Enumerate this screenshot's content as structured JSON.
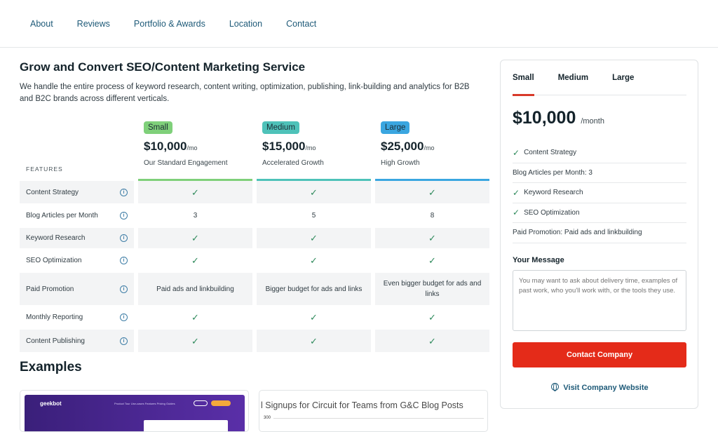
{
  "nav": [
    "About",
    "Reviews",
    "Portfolio & Awards",
    "Location",
    "Contact"
  ],
  "service": {
    "title": "Grow and Convert SEO/Content Marketing Service",
    "description": "We handle the entire process of keyword research, content writing, optimization, publishing, link-building and analytics for B2B and B2C brands across different verticals."
  },
  "features_label": "FEATURES",
  "plans": [
    {
      "name": "Small",
      "price": "$10,000",
      "unit": "/mo",
      "subtitle": "Our Standard Engagement",
      "badge_color": "#7fd07a",
      "bar_color": "#7fd07a"
    },
    {
      "name": "Medium",
      "price": "$15,000",
      "unit": "/mo",
      "subtitle": "Accelerated Growth",
      "badge_color": "#4ec2b9",
      "bar_color": "#4ec2b9"
    },
    {
      "name": "Large",
      "price": "$25,000",
      "unit": "/mo",
      "subtitle": "High Growth",
      "badge_color": "#3aa6e0",
      "bar_color": "#3aa6e0"
    }
  ],
  "features": [
    {
      "name": "Content Strategy",
      "values": [
        "✓",
        "✓",
        "✓"
      ]
    },
    {
      "name": "Blog Articles per Month",
      "values": [
        "3",
        "5",
        "8"
      ]
    },
    {
      "name": "Keyword Research",
      "values": [
        "✓",
        "✓",
        "✓"
      ]
    },
    {
      "name": "SEO Optimization",
      "values": [
        "✓",
        "✓",
        "✓"
      ]
    },
    {
      "name": "Paid Promotion",
      "values": [
        "Paid ads and linkbuilding",
        "Bigger budget for ads and links",
        "Even bigger budget for ads and links"
      ]
    },
    {
      "name": "Monthly Reporting",
      "values": [
        "✓",
        "✓",
        "✓"
      ]
    },
    {
      "name": "Content Publishing",
      "values": [
        "✓",
        "✓",
        "✓"
      ]
    }
  ],
  "examples": {
    "title": "Examples",
    "card1": {
      "logo": "geekbot",
      "nav_text": "Product Tour    Use-cases    Features    Pricing    Guides"
    },
    "card2": {
      "chart_title": "l Signups for Circuit for Teams from G&C Blog Posts",
      "y_tick": "300"
    }
  },
  "sidebar": {
    "tabs": [
      "Small",
      "Medium",
      "Large"
    ],
    "active_tab": "Small",
    "price": "$10,000",
    "price_unit": "/month",
    "items": [
      {
        "text": "Content Strategy",
        "check": true
      },
      {
        "text": "Blog Articles per Month: 3",
        "check": false
      },
      {
        "text": "Keyword Research",
        "check": true
      },
      {
        "text": "SEO Optimization",
        "check": true
      },
      {
        "text": "Paid Promotion: Paid ads and linkbuilding",
        "check": false
      }
    ],
    "message_label": "Your Message",
    "message_placeholder": "You may want to ask about delivery time, examples of past work, who you'll work with, or the tools they use.",
    "contact_button": "Contact Company",
    "visit_link": "Visit Company Website"
  }
}
